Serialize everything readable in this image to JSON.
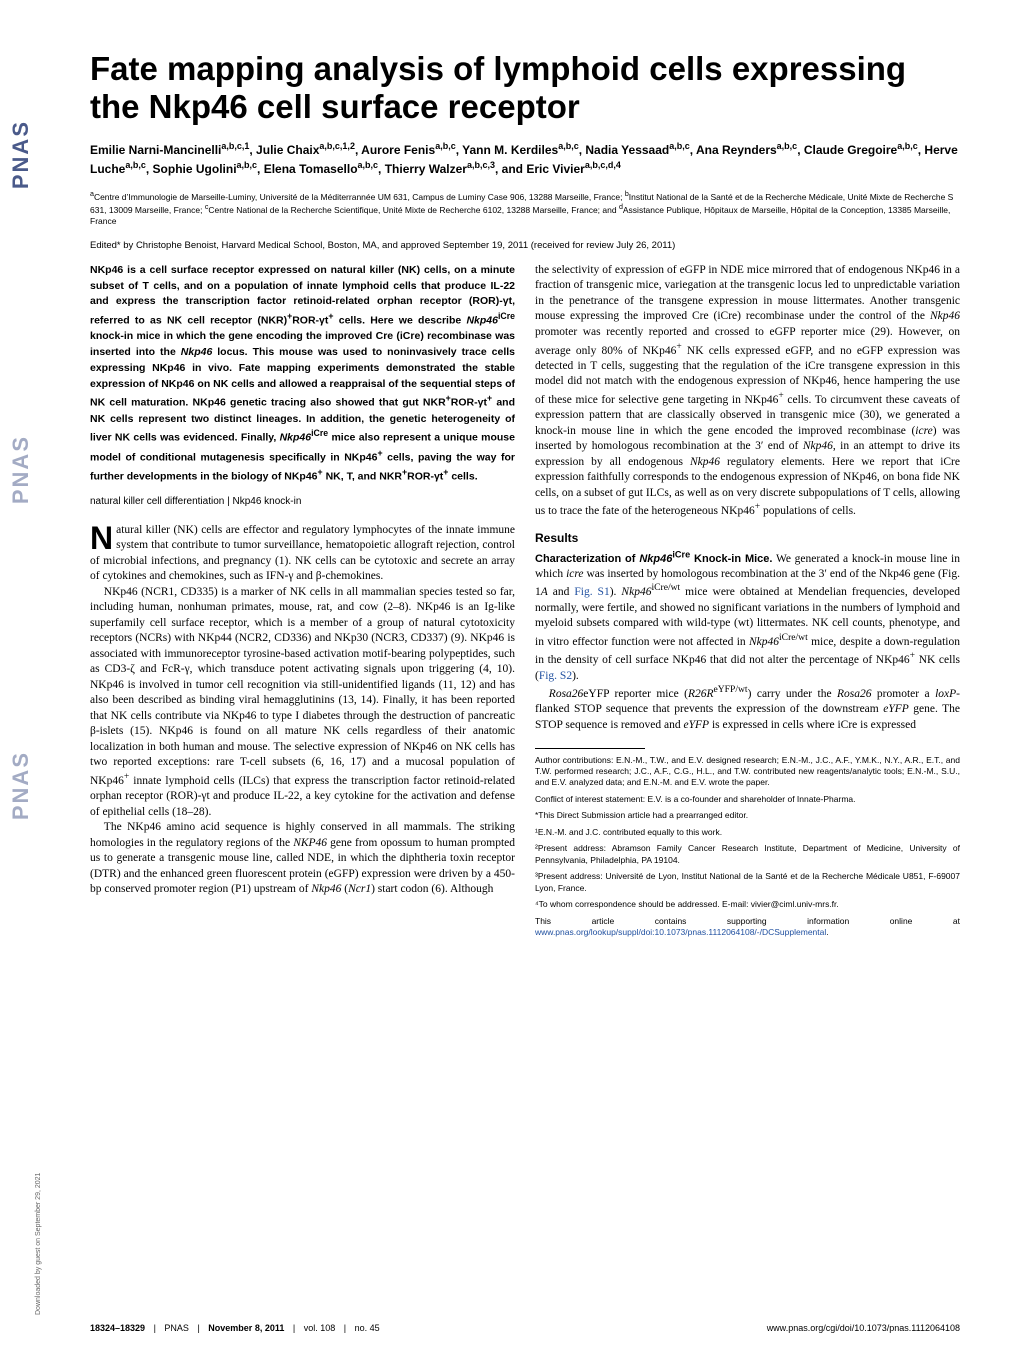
{
  "sidebar": {
    "logo_text": "PNAS",
    "download_note": "Downloaded by guest on September 29, 2021"
  },
  "title": "Fate mapping analysis of lymphoid cells expressing the Nkp46 cell surface receptor",
  "authors_html": "Emilie Narni-Mancinelli<sup>a,b,c,1</sup>, Julie Chaix<sup>a,b,c,1,2</sup>, Aurore Fenis<sup>a,b,c</sup>, Yann M. Kerdiles<sup>a,b,c</sup>, Nadia Yessaad<sup>a,b,c</sup>, Ana Reynders<sup>a,b,c</sup>, Claude Gregoire<sup>a,b,c</sup>, Herve Luche<sup>a,b,c</sup>, Sophie Ugolini<sup>a,b,c</sup>, Elena Tomasello<sup>a,b,c</sup>, Thierry Walzer<sup>a,b,c,3</sup>, and Eric Vivier<sup>a,b,c,d,4</sup>",
  "affiliations_html": "<sup>a</sup>Centre d’Immunologie de Marseille-Luminy, Université de la Méditerrannée UM 631, Campus de Luminy Case 906, 13288 Marseille, France; <sup>b</sup>Institut National de la Santé et de la Recherche Médicale, Unité Mixte de Recherche S 631, 13009 Marseille, France; <sup>c</sup>Centre National de la Recherche Scientifique, Unité Mixte de Recherche 6102, 13288 Marseille, France; and <sup>d</sup>Assistance Publique, Hôpitaux de Marseille, Hôpital de la Conception, 13385 Marseille, France",
  "edited": "Edited* by Christophe Benoist, Harvard Medical School, Boston, MA, and approved September 19, 2011 (received for review July 26, 2011)",
  "abstract_html": "NKp46 is a cell surface receptor expressed on natural killer (NK) cells, on a minute subset of T cells, and on a population of innate lymphoid cells that produce IL-22 and express the transcription factor retinoid-related orphan receptor (ROR)-γt, referred to as NK cell receptor (NKR)<sup>+</sup>ROR-γt<sup>+</sup> cells. Here we describe <i>Nkp46</i><sup>iCre</sup> knock-in mice in which the gene encoding the improved Cre (iCre) recombinase was inserted into the <i>Nkp46</i> locus. This mouse was used to noninvasively trace cells expressing NKp46 in vivo. Fate mapping experiments demonstrated the stable expression of NKp46 on NK cells and allowed a reappraisal of the sequential steps of NK cell maturation. NKp46 genetic tracing also showed that gut NKR<sup>+</sup>ROR-γt<sup>+</sup> and NK cells represent two distinct lineages. In addition, the genetic heterogeneity of liver NK cells was evidenced. Finally, <i>Nkp46</i><sup>iCre</sup> mice also represent a unique mouse model of conditional mutagenesis specifically in NKp46<sup>+</sup> cells, paving the way for further developments in the biology of NKp46<sup>+</sup> NK, T, and NKR<sup>+</sup>ROR-γt<sup>+</sup> cells.",
  "keywords": "natural killer cell differentiation | Nkp46 knock-in",
  "left_body": {
    "p1_html": "Natural killer (NK) cells are effector and regulatory lymphocytes of the innate immune system that contribute to tumor surveillance, hematopoietic allograft rejection, control of microbial infections, and pregnancy (1). NK cells can be cytotoxic and secrete an array of cytokines and chemokines, such as IFN-γ and β-chemokines.",
    "p2_html": "NKp46 (NCR1, CD335) is a marker of NK cells in all mammalian species tested so far, including human, nonhuman primates, mouse, rat, and cow (2–8). NKp46 is an Ig-like superfamily cell surface receptor, which is a member of a group of natural cytotoxicity receptors (NCRs) with NKp44 (NCR2, CD336) and NKp30 (NCR3, CD337) (9). NKp46 is associated with immunoreceptor tyrosine-based activation motif-bearing polypeptides, such as CD3-ζ and FcR-γ, which transduce potent activating signals upon triggering (4, 10). NKp46 is involved in tumor cell recognition via still-unidentified ligands (11, 12) and has also been described as binding viral hemagglutinins (13, 14). Finally, it has been reported that NK cells contribute via NKp46 to type I diabetes through the destruction of pancreatic β-islets (15). NKp46 is found on all mature NK cells regardless of their anatomic localization in both human and mouse. The selective expression of NKp46 on NK cells has two reported exceptions: rare T-cell subsets (6, 16, 17) and a mucosal population of NKp46<sup>+</sup> innate lymphoid cells (ILCs) that express the transcription factor retinoid-related orphan receptor (ROR)-γt and produce IL-22, a key cytokine for the activation and defense of epithelial cells (18–28).",
    "p3_html": "The NKp46 amino acid sequence is highly conserved in all mammals. The striking homologies in the regulatory regions of the <i>NKP46</i> gene from opossum to human prompted us to generate a transgenic mouse line, called NDE, in which the diphtheria toxin receptor (DTR) and the enhanced green fluorescent protein (eGFP) expression were driven by a 450-bp conserved promoter region (P1) upstream of <i>Nkp46</i> (<i>Ncr1</i>) start codon (6). Although"
  },
  "right_body": {
    "p1_html": "the selectivity of expression of eGFP in NDE mice mirrored that of endogenous NKp46 in a fraction of transgenic mice, variegation at the transgenic locus led to unpredictable variation in the penetrance of the transgene expression in mouse littermates. Another transgenic mouse expressing the improved Cre (iCre) recombinase under the control of the <i>Nkp46</i> promoter was recently reported and crossed to eGFP reporter mice (29). However, on average only 80% of NKp46<sup>+</sup> NK cells expressed eGFP, and no eGFP expression was detected in T cells, suggesting that the regulation of the iCre transgene expression in this model did not match with the endogenous expression of NKp46, hence hampering the use of these mice for selective gene targeting in NKp46<sup>+</sup> cells. To circumvent these caveats of expression pattern that are classically observed in transgenic mice (30), we generated a knock-in mouse line in which the gene encoded the improved recombinase (<i>icre</i>) was inserted by homologous recombination at the 3′ end of <i>Nkp46</i>, in an attempt to drive its expression by all endogenous <i>Nkp46</i> regulatory elements. Here we report that iCre expression faithfully corresponds to the endogenous expression of NKp46, on bona fide NK cells, on a subset of gut ILCs, as well as on very discrete subpopulations of T cells, allowing us to trace the fate of the heterogeneous NKp46<sup>+</sup> populations of cells.",
    "results_head": "Results",
    "sub1_label_html": "Characterization of <i>Nkp46</i><sup>iCre</sup> Knock-in Mice.",
    "sub1_text_html": " We generated a knock-in mouse line in which <i>icre</i> was inserted by homologous recombination at the 3′ end of the Nkp46 gene (Fig. 1<i>A</i> and <span class='link'>Fig. S1</span>). <i>Nkp46</i><sup>iCre/wt</sup> mice were obtained at Mendelian frequencies, developed normally, were fertile, and showed no significant variations in the numbers of lymphoid and myeloid subsets compared with wild-type (wt) littermates. NK cell counts, phenotype, and in vitro effector function were not affected in <i>Nkp46</i><sup>iCre/wt</sup> mice, despite a down-regulation in the density of cell surface NKp46 that did not alter the percentage of NKp46<sup>+</sup> NK cells (<span class='link'>Fig. S2</span>).",
    "p2_html": "<i>Rosa26</i>eYFP reporter mice (<i>R26R</i><sup>eYFP/wt</sup>) carry under the <i>Rosa26</i> promoter a <i>loxP</i>-flanked STOP sequence that prevents the expression of the downstream <i>eYFP</i> gene. The STOP sequence is removed and <i>eYFP</i> is expressed in cells where iCre is expressed"
  },
  "footnotes": {
    "contrib": "Author contributions: E.N.-M., T.W., and E.V. designed research; E.N.-M., J.C., A.F., Y.M.K., N.Y., A.R., E.T., and T.W. performed research; J.C., A.F., C.G., H.L., and T.W. contributed new reagents/analytic tools; E.N.-M., S.U., and E.V. analyzed data; and E.N.-M. and E.V. wrote the paper.",
    "conflict": "Conflict of interest statement: E.V. is a co-founder and shareholder of Innate-Pharma.",
    "direct": "*This Direct Submission article had a prearranged editor.",
    "f1": "¹E.N.-M. and J.C. contributed equally to this work.",
    "f2": "²Present address: Abramson Family Cancer Research Institute, Department of Medicine, University of Pennsylvania, Philadelphia, PA 19104.",
    "f3": "³Present address: Université de Lyon, Institut National de la Santé et de la Recherche Médicale U851, F-69007 Lyon, France.",
    "f4": "⁴To whom correspondence should be addressed. E-mail: vivier@ciml.univ-mrs.fr.",
    "supp_html": "This article contains supporting information online at <span class='link'>www.pnas.org/lookup/suppl/doi:10.1073/pnas.1112064108/-/DCSupplemental</span>."
  },
  "footer": {
    "left_html": "<b>18324–18329</b> <span class='sep'>|</span> PNAS <span class='sep'>|</span> <b>November 8, 2011</b> <span class='sep'>|</span> vol. 108 <span class='sep'>|</span> no. 45",
    "right": "www.pnas.org/cgi/doi/10.1073/pnas.1112064108"
  },
  "style": {
    "link_color": "#2050a0",
    "body_font_size_pt": 11.5,
    "title_font_size_pt": 33,
    "page_bg": "#ffffff"
  }
}
